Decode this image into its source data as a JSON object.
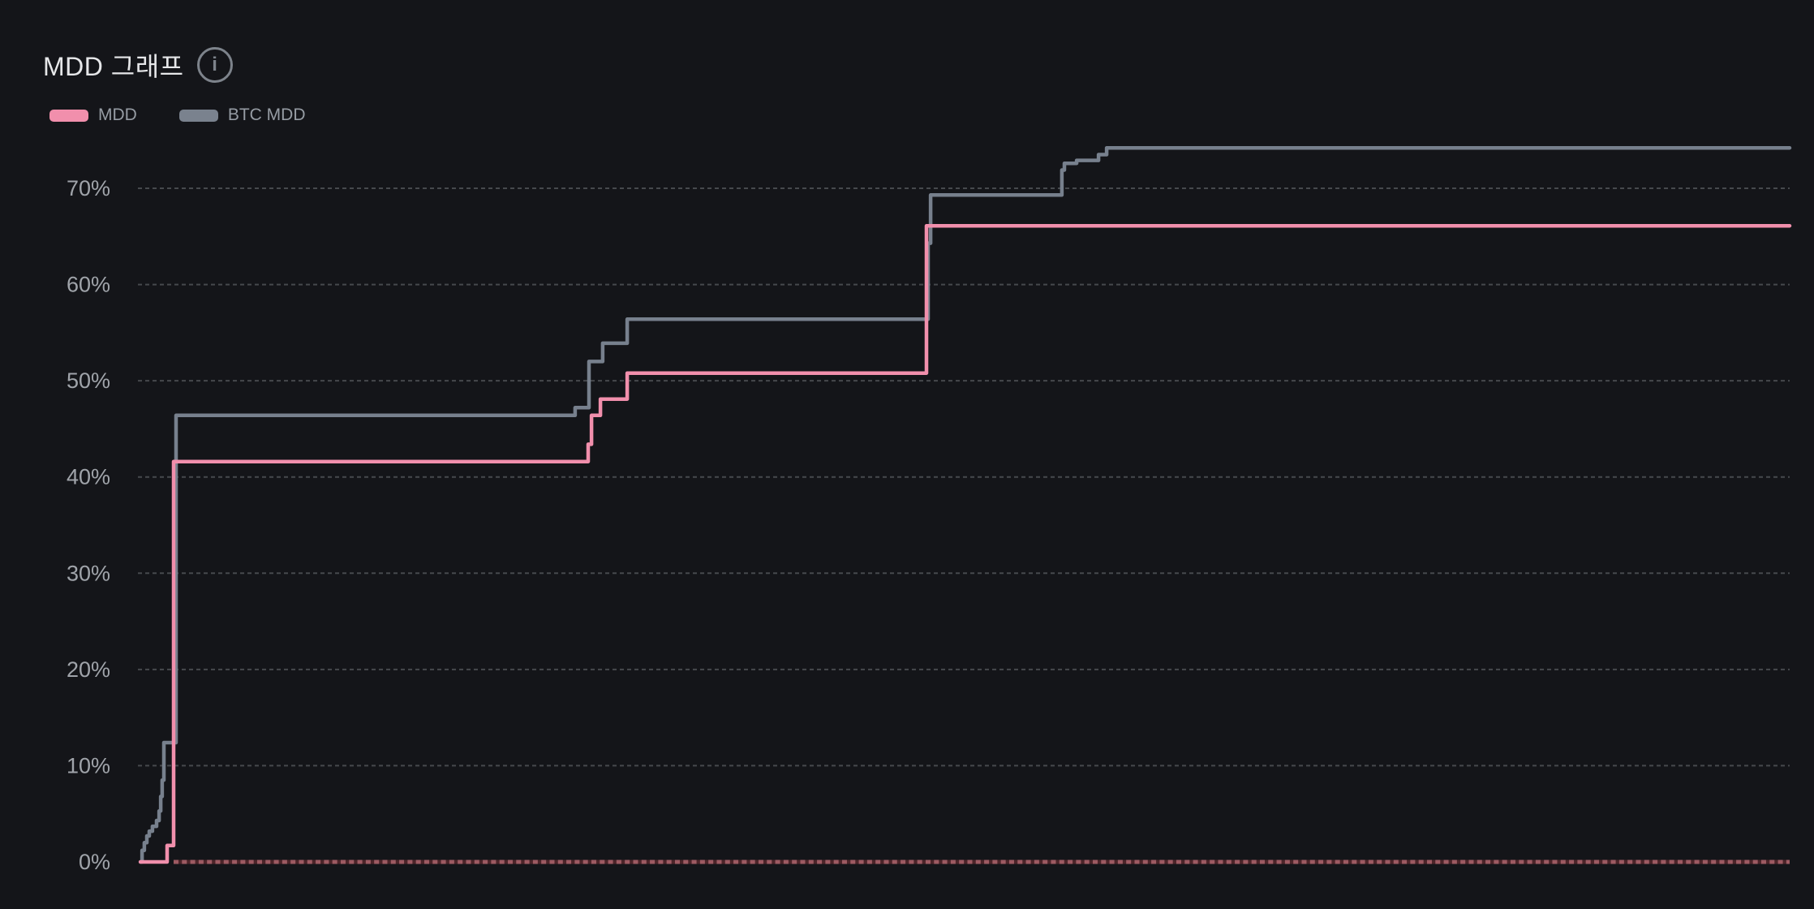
{
  "header": {
    "title": "MDD 그래프"
  },
  "icons": {
    "info": "i"
  },
  "legend": {
    "items": [
      {
        "id": "mdd",
        "label": "MDD",
        "color": "#F18FAC"
      },
      {
        "id": "btc-mdd",
        "label": "BTC MDD",
        "color": "#7A828E"
      }
    ]
  },
  "colors": {
    "background": "#141519",
    "title_text": "#e6e7e9",
    "axis_text": "#a0a4aa",
    "gridline": "#46494d",
    "mdd_line": "#F18FAC",
    "btc_mdd_line": "#77808D",
    "zero_line_dash": "#9D5A62",
    "zero_line_gap": "#4C252A"
  },
  "chart_data": {
    "type": "line",
    "title": "MDD 그래프",
    "xlabel": "",
    "ylabel": "",
    "ylim": [
      0,
      77.5
    ],
    "x_unit": "fraction_of_plot_width",
    "x_axis_visible": false,
    "grid": {
      "horizontal": true,
      "style": "dashed"
    },
    "legend_position": "top-left",
    "y_ticks": [
      {
        "value": 0,
        "label": "0%"
      },
      {
        "value": 10,
        "label": "10%"
      },
      {
        "value": 20,
        "label": "20%"
      },
      {
        "value": 30,
        "label": "30%"
      },
      {
        "value": 40,
        "label": "40%"
      },
      {
        "value": 50,
        "label": "50%"
      },
      {
        "value": 60,
        "label": "60%"
      },
      {
        "value": 70,
        "label": "70%"
      }
    ],
    "series": [
      {
        "name": "BTC MDD",
        "color": "#77808D",
        "step": true,
        "points": [
          [
            0.0015,
            0
          ],
          [
            0.0025,
            1.2
          ],
          [
            0.0039,
            2.0
          ],
          [
            0.0054,
            2.7
          ],
          [
            0.0069,
            3.2
          ],
          [
            0.0088,
            3.7
          ],
          [
            0.0113,
            4.3
          ],
          [
            0.0128,
            5.3
          ],
          [
            0.0138,
            6.8
          ],
          [
            0.0147,
            8.5
          ],
          [
            0.0157,
            12.4
          ],
          [
            0.0231,
            46.4
          ],
          [
            0.2647,
            47.2
          ],
          [
            0.2731,
            52.0
          ],
          [
            0.2814,
            53.9
          ],
          [
            0.2962,
            56.4
          ],
          [
            0.4784,
            64.3
          ],
          [
            0.4799,
            69.3
          ],
          [
            0.5594,
            71.9
          ],
          [
            0.5609,
            72.6
          ],
          [
            0.5683,
            72.9
          ],
          [
            0.5816,
            73.5
          ],
          [
            0.5865,
            74.2
          ],
          [
            1.0,
            74.2
          ]
        ]
      },
      {
        "name": "MDD",
        "color": "#F18FAC",
        "step": true,
        "points": [
          [
            0.0015,
            0
          ],
          [
            0.0177,
            1.7
          ],
          [
            0.0216,
            41.6
          ],
          [
            0.2726,
            43.4
          ],
          [
            0.2746,
            46.4
          ],
          [
            0.28,
            48.1
          ],
          [
            0.2962,
            50.8
          ],
          [
            0.4774,
            66.1
          ],
          [
            1.0,
            66.1
          ]
        ]
      }
    ],
    "zero_baseline": {
      "value": 0,
      "start_frac": 0.0216,
      "end_frac": 1.0,
      "style": "dashed"
    }
  }
}
